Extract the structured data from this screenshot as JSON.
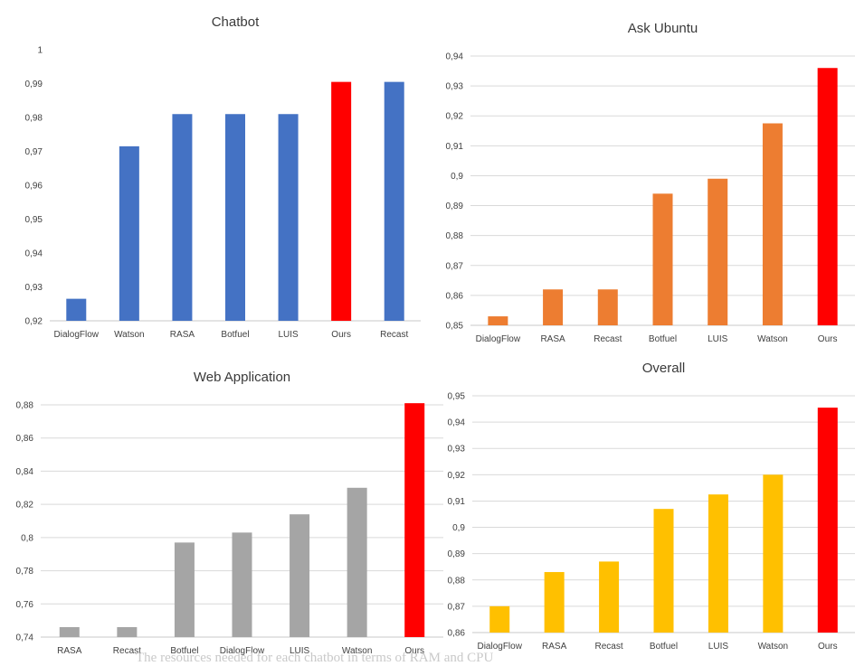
{
  "chart_data": [
    {
      "type": "bar",
      "title": "Chatbot",
      "categories": [
        "DialogFlow",
        "Watson",
        "RASA",
        "Botfuel",
        "LUIS",
        "Ours",
        "Recast"
      ],
      "values": [
        0.9265,
        0.9715,
        0.981,
        0.981,
        0.981,
        0.9905,
        0.9905
      ],
      "colors": [
        "#4472c4",
        "#4472c4",
        "#4472c4",
        "#4472c4",
        "#4472c4",
        "#ff0000",
        "#4472c4"
      ],
      "ylim": [
        0.92,
        1
      ],
      "yticks": [
        "0,92",
        "0,93",
        "0,94",
        "0,95",
        "0,96",
        "0,97",
        "0,98",
        "0,99",
        "1"
      ],
      "grid": false
    },
    {
      "type": "bar",
      "title": "Ask Ubuntu",
      "categories": [
        "DialogFlow",
        "RASA",
        "Recast",
        "Botfuel",
        "LUIS",
        "Watson",
        "Ours"
      ],
      "values": [
        0.853,
        0.862,
        0.862,
        0.894,
        0.899,
        0.9175,
        0.936
      ],
      "colors": [
        "#ed7d31",
        "#ed7d31",
        "#ed7d31",
        "#ed7d31",
        "#ed7d31",
        "#ed7d31",
        "#ff0000"
      ],
      "ylim": [
        0.85,
        0.94
      ],
      "yticks": [
        "0,85",
        "0,86",
        "0,87",
        "0,88",
        "0,89",
        "0,9",
        "0,91",
        "0,92",
        "0,93",
        "0,94"
      ],
      "grid": true
    },
    {
      "type": "bar",
      "title": "Web Application",
      "categories": [
        "RASA",
        "Recast",
        "Botfuel",
        "DialogFlow",
        "LUIS",
        "Watson",
        "Ours"
      ],
      "values": [
        0.746,
        0.746,
        0.797,
        0.803,
        0.814,
        0.83,
        0.881
      ],
      "colors": [
        "#a5a5a5",
        "#a5a5a5",
        "#a5a5a5",
        "#a5a5a5",
        "#a5a5a5",
        "#a5a5a5",
        "#ff0000"
      ],
      "ylim": [
        0.74,
        0.88
      ],
      "yticks": [
        "0,74",
        "0,76",
        "0,78",
        "0,8",
        "0,82",
        "0,84",
        "0,86",
        "0,88"
      ],
      "grid": true
    },
    {
      "type": "bar",
      "title": "Overall",
      "categories": [
        "DialogFlow",
        "RASA",
        "Recast",
        "Botfuel",
        "LUIS",
        "Watson",
        "Ours"
      ],
      "values": [
        0.87,
        0.883,
        0.887,
        0.907,
        0.9125,
        0.92,
        0.9455
      ],
      "colors": [
        "#ffc000",
        "#ffc000",
        "#ffc000",
        "#ffc000",
        "#ffc000",
        "#ffc000",
        "#ff0000"
      ],
      "ylim": [
        0.86,
        0.95
      ],
      "yticks": [
        "0,86",
        "0,87",
        "0,88",
        "0,89",
        "0,9",
        "0,91",
        "0,92",
        "0,93",
        "0,94",
        "0,95"
      ],
      "grid": true
    }
  ],
  "caption": "The resources needed for each chatbot in terms of RAM and CPU"
}
